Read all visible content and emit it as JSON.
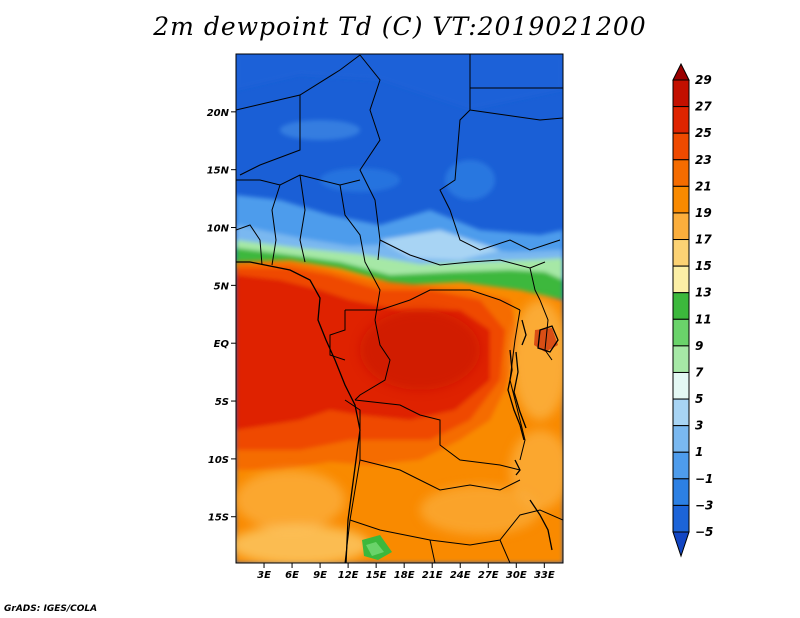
{
  "title": "2m dewpoint Td (C) VT:2019021200",
  "credit": "GrADS: IGES/COLA",
  "map": {
    "region": "Central Africa",
    "lon_range": [
      0,
      35
    ],
    "lat_range": [
      -19,
      25
    ],
    "lon_ticks": [
      "3E",
      "6E",
      "9E",
      "12E",
      "15E",
      "18E",
      "21E",
      "24E",
      "27E",
      "30E",
      "33E"
    ],
    "lat_ticks": [
      "20N",
      "15N",
      "10N",
      "5N",
      "EQ",
      "5S",
      "10S",
      "15S"
    ]
  },
  "colorbar": {
    "labels": [
      "29",
      "27",
      "25",
      "23",
      "21",
      "19",
      "17",
      "15",
      "13",
      "11",
      "9",
      "7",
      "5",
      "3",
      "1",
      "−1",
      "−3",
      "−5"
    ],
    "colors": [
      "#9b0000",
      "#c31000",
      "#df2400",
      "#ef4a00",
      "#f56c00",
      "#f98a00",
      "#fbae3c",
      "#fcd274",
      "#fcefa6",
      "#3cb83c",
      "#6ad36a",
      "#a6e8a6",
      "#e4f8f4",
      "#a8d4f4",
      "#7ab8f0",
      "#4e9cec",
      "#2c80e4",
      "#1c64d8",
      "#1246c4"
    ]
  }
}
